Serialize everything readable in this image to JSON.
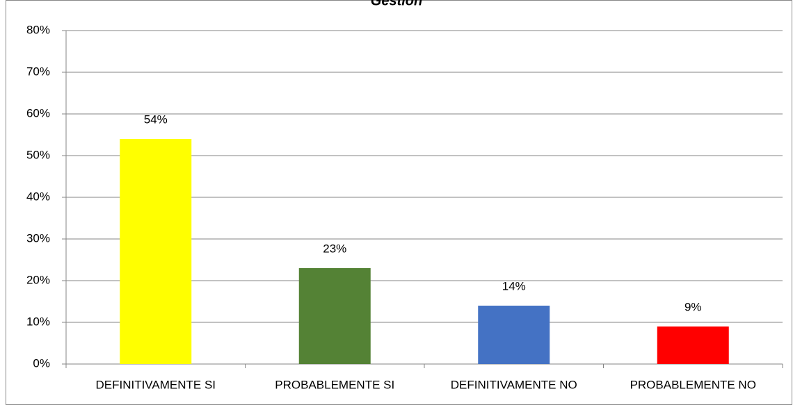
{
  "chart_data": {
    "type": "bar",
    "title": "Gestion",
    "categories": [
      "DEFINITIVAMENTE SI",
      "PROBABLEMENTE SI",
      "DEFINITIVAMENTE NO",
      "PROBABLEMENTE NO"
    ],
    "values": [
      54,
      23,
      14,
      9
    ],
    "value_labels": [
      "54%",
      "23%",
      "14%",
      "9%"
    ],
    "colors": [
      "#ffff00",
      "#548235",
      "#4472c4",
      "#ff0000"
    ],
    "ylim": [
      0,
      80
    ],
    "yticks": [
      {
        "value": 0,
        "label": "0%"
      },
      {
        "value": 10,
        "label": "10%"
      },
      {
        "value": 20,
        "label": "20%"
      },
      {
        "value": 30,
        "label": "30%"
      },
      {
        "value": 40,
        "label": "40%"
      },
      {
        "value": 50,
        "label": "50%"
      },
      {
        "value": 60,
        "label": "60%"
      },
      {
        "value": 70,
        "label": "70%"
      },
      {
        "value": 80,
        "label": "80%"
      }
    ],
    "grid": true
  }
}
